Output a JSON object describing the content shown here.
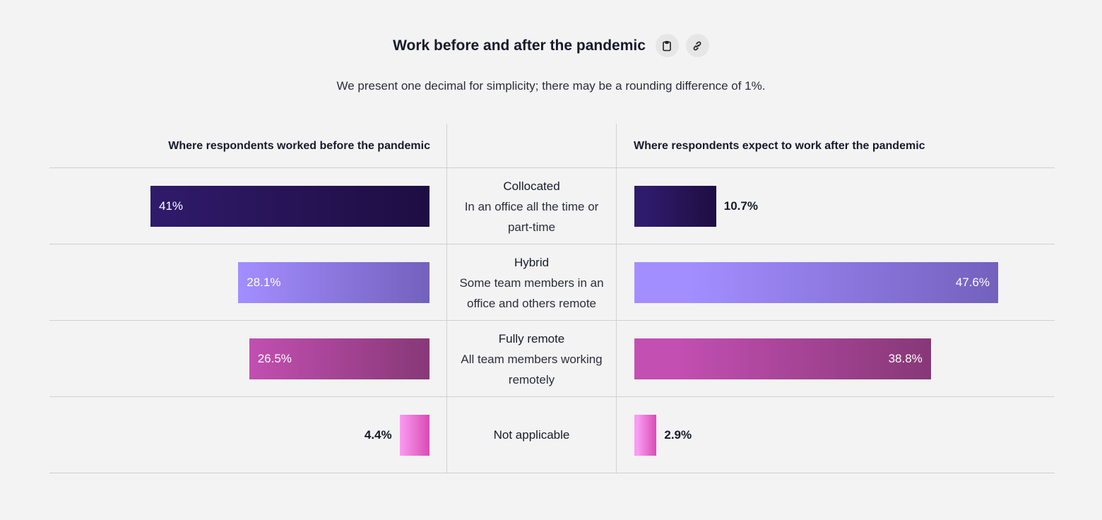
{
  "header": {
    "title": "Work before and after the pandemic",
    "copy_icon": "clipboard-icon",
    "link_icon": "link-icon",
    "subtitle": "We present one decimal for simplicity; there may be a rounding difference of 1%."
  },
  "chart_data": {
    "type": "bar",
    "orientation": "horizontal, diverging (two panels)",
    "columns": [
      "Where respondents worked before the pandemic",
      "Where respondents expect to work after the pandemic"
    ],
    "categories": [
      {
        "name": "Collocated",
        "desc": "In an office all the time or part-time"
      },
      {
        "name": "Hybrid",
        "desc": "Some team members in an office and others remote"
      },
      {
        "name": "Fully remote",
        "desc": "All team members working remotely"
      },
      {
        "name": "Not applicable",
        "desc": ""
      }
    ],
    "series": [
      {
        "name": "Where respondents worked before the pandemic",
        "values": [
          41,
          28.1,
          26.5,
          4.4
        ],
        "labels": [
          "41%",
          "28.1%",
          "26.5%",
          "4.4%"
        ]
      },
      {
        "name": "Where respondents expect to work after the pandemic",
        "values": [
          10.7,
          47.6,
          38.8,
          2.9
        ],
        "labels": [
          "10.7%",
          "47.6%",
          "38.8%",
          "2.9%"
        ]
      }
    ],
    "colors": [
      [
        "#2f1b6b",
        "#1e0d42"
      ],
      [
        "#a38eff",
        "#7361bd"
      ],
      [
        "#c24fb1",
        "#873877"
      ],
      [
        "#f99cf3",
        "#d94bb3"
      ]
    ]
  }
}
